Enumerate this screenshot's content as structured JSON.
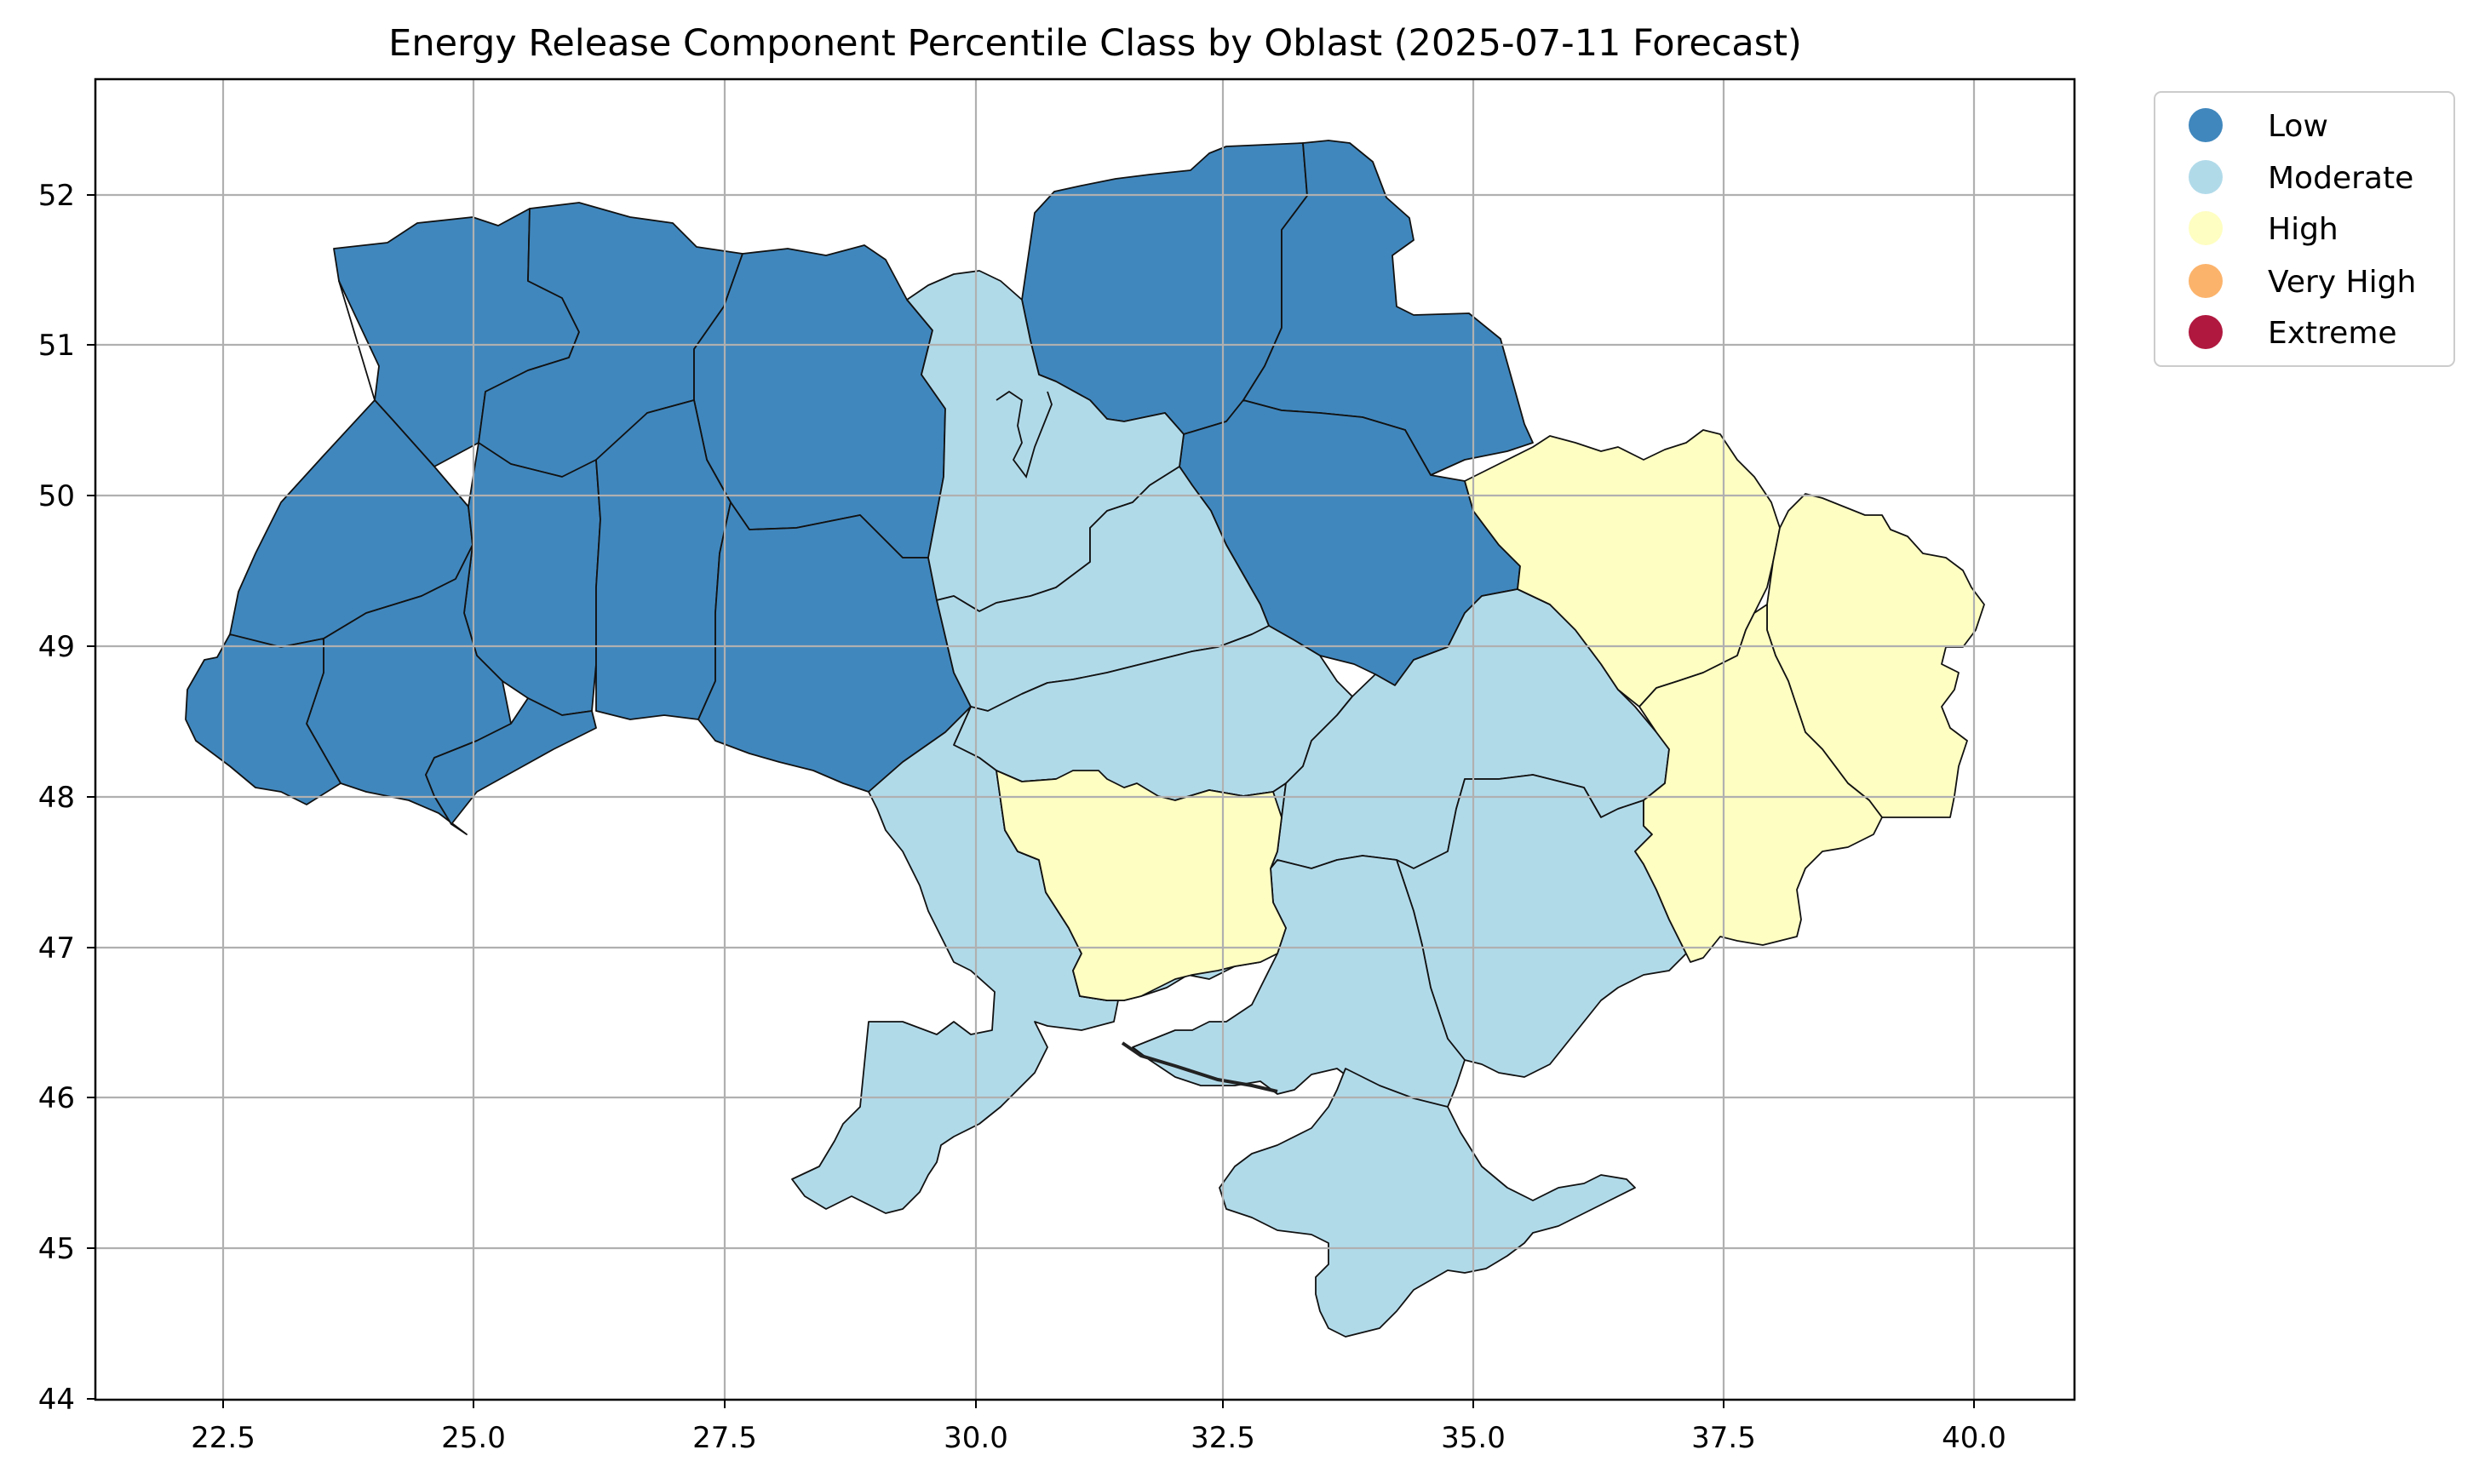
{
  "title": "Energy Release Component Percentile Class by Oblast (2025-07-11 Forecast)",
  "axes": {
    "x_ticks": [
      "22.5",
      "25.0",
      "27.5",
      "30.0",
      "32.5",
      "35.0",
      "37.5",
      "40.0"
    ],
    "y_ticks": [
      "44",
      "45",
      "46",
      "47",
      "48",
      "49",
      "50",
      "51",
      "52"
    ],
    "x_range": [
      21.3,
      41.0
    ],
    "y_range": [
      44.0,
      52.8
    ],
    "grid": true
  },
  "legend": {
    "placement": "upper-right-outside",
    "items": [
      {
        "label": "Low",
        "color": "#4087bd"
      },
      {
        "label": "Moderate",
        "color": "#b1dae9"
      },
      {
        "label": "High",
        "color": "#fefec2"
      },
      {
        "label": "Very High",
        "color": "#fbb36b"
      },
      {
        "label": "Extreme",
        "color": "#b0183f"
      }
    ]
  },
  "classes": {
    "Low": "#4087bd",
    "Moderate": "#b1dae9",
    "High": "#fefec2"
  }
}
